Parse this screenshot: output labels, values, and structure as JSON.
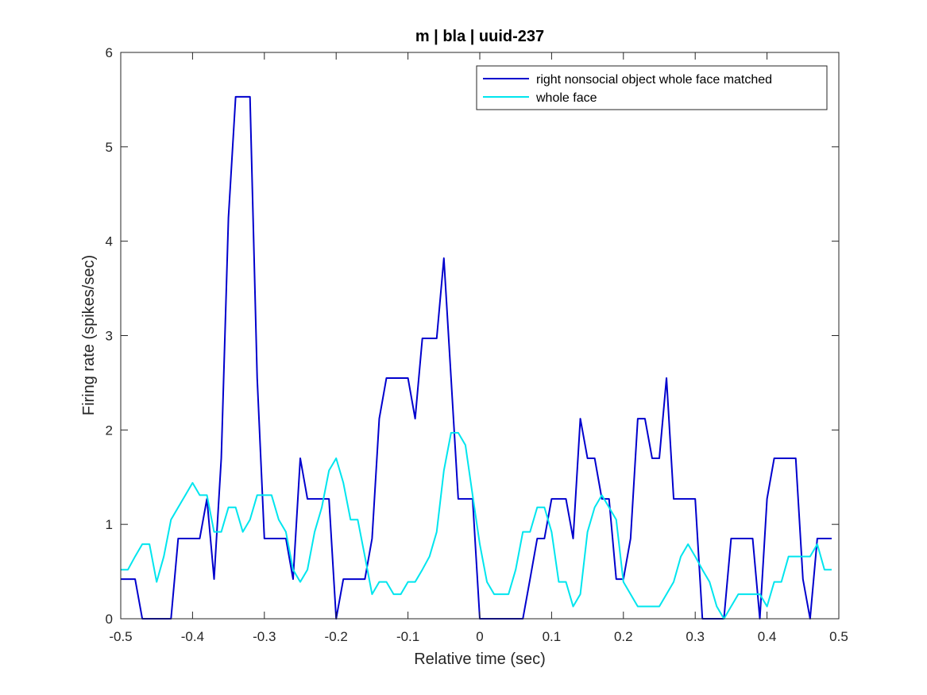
{
  "chart_data": {
    "type": "line",
    "title": "m | bla | uuid-237",
    "xlabel": "Relative time (sec)",
    "ylabel": "Firing rate (spikes/sec)",
    "xlim": [
      -0.5,
      0.5
    ],
    "ylim": [
      0,
      6
    ],
    "xticks": [
      -0.5,
      -0.4,
      -0.3,
      -0.2,
      -0.1,
      0,
      0.1,
      0.2,
      0.3,
      0.4,
      0.5
    ],
    "xtick_labels": [
      "-0.5",
      "-0.4",
      "-0.3",
      "-0.2",
      "-0.1",
      "0",
      "0.1",
      "0.2",
      "0.3",
      "0.4",
      "0.5"
    ],
    "yticks": [
      0,
      1,
      2,
      3,
      4,
      5,
      6
    ],
    "ytick_labels": [
      "0",
      "1",
      "2",
      "3",
      "4",
      "5",
      "6"
    ],
    "grid": false,
    "legend_position": "top-right",
    "series": [
      {
        "name": "right nonsocial object whole face matched",
        "color": "#0000CD",
        "x": [
          -0.5,
          -0.49,
          -0.48,
          -0.47,
          -0.46,
          -0.45,
          -0.44,
          -0.43,
          -0.42,
          -0.41,
          -0.4,
          -0.39,
          -0.38,
          -0.37,
          -0.36,
          -0.35,
          -0.34,
          -0.33,
          -0.32,
          -0.31,
          -0.3,
          -0.29,
          -0.28,
          -0.27,
          -0.26,
          -0.25,
          -0.24,
          -0.23,
          -0.22,
          -0.21,
          -0.2,
          -0.19,
          -0.18,
          -0.17,
          -0.16,
          -0.15,
          -0.14,
          -0.13,
          -0.12,
          -0.11,
          -0.1,
          -0.09,
          -0.08,
          -0.07,
          -0.06,
          -0.05,
          -0.04,
          -0.03,
          -0.02,
          -0.01,
          0.0,
          0.01,
          0.02,
          0.03,
          0.04,
          0.05,
          0.06,
          0.07,
          0.08,
          0.09,
          0.1,
          0.11,
          0.12,
          0.13,
          0.14,
          0.15,
          0.16,
          0.17,
          0.18,
          0.19,
          0.2,
          0.21,
          0.22,
          0.23,
          0.24,
          0.25,
          0.26,
          0.27,
          0.28,
          0.29,
          0.3,
          0.31,
          0.32,
          0.33,
          0.34,
          0.35,
          0.36,
          0.37,
          0.38,
          0.39,
          0.4,
          0.41,
          0.42,
          0.43,
          0.44,
          0.45,
          0.46,
          0.47,
          0.48,
          0.49
        ],
        "y": [
          0.42,
          0.42,
          0.42,
          0,
          0,
          0,
          0,
          0,
          0.85,
          0.85,
          0.85,
          0.85,
          1.27,
          0.42,
          1.7,
          4.25,
          5.53,
          5.53,
          5.53,
          2.55,
          0.85,
          0.85,
          0.85,
          0.85,
          0.42,
          1.7,
          1.27,
          1.27,
          1.27,
          1.27,
          0,
          0.42,
          0.42,
          0.42,
          0.42,
          0.85,
          2.12,
          2.55,
          2.55,
          2.55,
          2.55,
          2.12,
          2.97,
          2.97,
          2.97,
          3.82,
          2.55,
          1.27,
          1.27,
          1.27,
          0,
          0,
          0,
          0,
          0,
          0,
          0,
          0.42,
          0.85,
          0.85,
          1.27,
          1.27,
          1.27,
          0.85,
          2.12,
          1.7,
          1.7,
          1.27,
          1.27,
          0.42,
          0.42,
          0.85,
          2.12,
          2.12,
          1.7,
          1.7,
          2.55,
          1.27,
          1.27,
          1.27,
          1.27,
          0,
          0,
          0,
          0,
          0.85,
          0.85,
          0.85,
          0.85,
          0,
          1.27,
          1.7,
          1.7,
          1.7,
          1.7,
          0.42,
          0,
          0.85,
          0.85,
          0.85
        ]
      },
      {
        "name": "whole face",
        "color": "#00E5EE",
        "x": [
          -0.5,
          -0.49,
          -0.48,
          -0.47,
          -0.46,
          -0.45,
          -0.44,
          -0.43,
          -0.42,
          -0.41,
          -0.4,
          -0.39,
          -0.38,
          -0.37,
          -0.36,
          -0.35,
          -0.34,
          -0.33,
          -0.32,
          -0.31,
          -0.3,
          -0.29,
          -0.28,
          -0.27,
          -0.26,
          -0.25,
          -0.24,
          -0.23,
          -0.22,
          -0.21,
          -0.2,
          -0.19,
          -0.18,
          -0.17,
          -0.16,
          -0.15,
          -0.14,
          -0.13,
          -0.12,
          -0.11,
          -0.1,
          -0.09,
          -0.08,
          -0.07,
          -0.06,
          -0.05,
          -0.04,
          -0.03,
          -0.02,
          -0.01,
          0.0,
          0.01,
          0.02,
          0.03,
          0.04,
          0.05,
          0.06,
          0.07,
          0.08,
          0.09,
          0.1,
          0.11,
          0.12,
          0.13,
          0.14,
          0.15,
          0.16,
          0.17,
          0.18,
          0.19,
          0.2,
          0.21,
          0.22,
          0.23,
          0.24,
          0.25,
          0.26,
          0.27,
          0.28,
          0.29,
          0.3,
          0.31,
          0.32,
          0.33,
          0.34,
          0.35,
          0.36,
          0.37,
          0.38,
          0.39,
          0.4,
          0.41,
          0.42,
          0.43,
          0.44,
          0.45,
          0.46,
          0.47,
          0.48,
          0.49
        ],
        "y": [
          0.52,
          0.52,
          0.66,
          0.79,
          0.79,
          0.39,
          0.66,
          1.05,
          1.18,
          1.31,
          1.44,
          1.31,
          1.31,
          0.92,
          0.92,
          1.18,
          1.18,
          0.92,
          1.05,
          1.31,
          1.31,
          1.31,
          1.05,
          0.92,
          0.52,
          0.39,
          0.52,
          0.92,
          1.18,
          1.57,
          1.7,
          1.44,
          1.05,
          1.05,
          0.66,
          0.26,
          0.39,
          0.39,
          0.26,
          0.26,
          0.39,
          0.39,
          0.52,
          0.66,
          0.92,
          1.57,
          1.97,
          1.97,
          1.84,
          1.31,
          0.79,
          0.39,
          0.26,
          0.26,
          0.26,
          0.52,
          0.92,
          0.92,
          1.18,
          1.18,
          0.92,
          0.39,
          0.39,
          0.13,
          0.26,
          0.92,
          1.18,
          1.31,
          1.18,
          1.05,
          0.39,
          0.26,
          0.13,
          0.13,
          0.13,
          0.13,
          0.26,
          0.39,
          0.66,
          0.79,
          0.66,
          0.52,
          0.39,
          0.13,
          0,
          0.13,
          0.26,
          0.26,
          0.26,
          0.26,
          0.13,
          0.39,
          0.39,
          0.66,
          0.66,
          0.66,
          0.66,
          0.79,
          0.52,
          0.52
        ]
      }
    ]
  }
}
